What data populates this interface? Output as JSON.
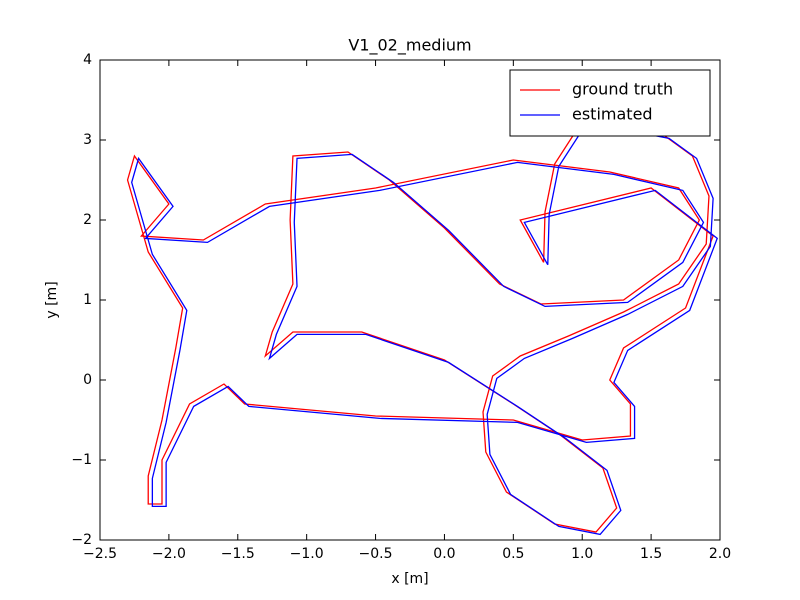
{
  "chart_data": {
    "type": "line",
    "title": "V1_02_medium",
    "xlabel": "x [m]",
    "ylabel": "y [m]",
    "xlim": [
      -2.5,
      2.0
    ],
    "ylim": [
      -2,
      4
    ],
    "xticks": [
      {
        "value": -2.5,
        "label": "−2.5"
      },
      {
        "value": -2.0,
        "label": "−2.0"
      },
      {
        "value": -1.5,
        "label": "−1.5"
      },
      {
        "value": -1.0,
        "label": "−1.0"
      },
      {
        "value": -0.5,
        "label": "−0.5"
      },
      {
        "value": 0.0,
        "label": "0.0"
      },
      0.5,
      {
        "value": 1.0,
        "label": "1.0"
      },
      1.5,
      {
        "value": 2.0,
        "label": "2.0"
      }
    ],
    "yticks": [
      {
        "value": -2,
        "label": "−2"
      },
      {
        "value": -1,
        "label": "−1"
      },
      0,
      1,
      2,
      3,
      4
    ],
    "legend": "upper right",
    "series": [
      {
        "name": "ground truth",
        "color": "#ff0000",
        "x": [
          0.72,
          0.73,
          0.8,
          0.95,
          1.3,
          1.6,
          1.8,
          1.92,
          1.9,
          1.7,
          1.3,
          0.9,
          0.55,
          0.35,
          0.28,
          0.3,
          0.45,
          0.8,
          1.1,
          1.25,
          1.15,
          0.85,
          0.5,
          0.0,
          -0.6,
          -1.1,
          -1.3,
          -1.25,
          -1.1,
          -1.12,
          -1.1,
          -0.7,
          -0.4,
          0.0,
          0.4,
          0.7,
          1.3,
          1.7,
          1.85,
          1.7,
          1.2,
          0.5,
          -0.5,
          -1.3,
          -1.75,
          -2.2,
          -2.0,
          -2.25,
          -2.3,
          -2.15,
          -1.9,
          -1.95,
          -2.05,
          -2.15,
          -2.15,
          -2.05,
          -2.05,
          -1.85,
          -1.6,
          -1.45,
          -0.5,
          0.5,
          1.0,
          1.35,
          1.35,
          1.2,
          1.3,
          1.75,
          1.95,
          1.5,
          0.55,
          0.72
        ],
        "values": [
          1.47,
          2.1,
          2.7,
          3.1,
          3.15,
          3.05,
          2.8,
          2.3,
          1.7,
          1.2,
          0.85,
          0.55,
          0.3,
          0.05,
          -0.4,
          -0.9,
          -1.4,
          -1.8,
          -1.9,
          -1.6,
          -1.1,
          -0.7,
          -0.3,
          0.25,
          0.6,
          0.6,
          0.3,
          0.6,
          1.2,
          2.0,
          2.8,
          2.85,
          2.5,
          1.9,
          1.2,
          0.95,
          1.0,
          1.5,
          2.0,
          2.4,
          2.6,
          2.75,
          2.4,
          2.2,
          1.75,
          1.8,
          2.2,
          2.8,
          2.5,
          1.6,
          0.9,
          0.4,
          -0.5,
          -1.2,
          -1.55,
          -1.55,
          -1.0,
          -0.3,
          -0.05,
          -0.3,
          -0.45,
          -0.5,
          -0.75,
          -0.7,
          -0.3,
          0.0,
          0.4,
          0.9,
          1.8,
          2.4,
          2.0,
          1.47
        ]
      },
      {
        "name": "estimated",
        "color": "#0000ff",
        "x": [
          0.75,
          0.76,
          0.83,
          0.98,
          1.33,
          1.63,
          1.83,
          1.95,
          1.93,
          1.73,
          1.33,
          0.93,
          0.58,
          0.38,
          0.31,
          0.33,
          0.48,
          0.83,
          1.13,
          1.28,
          1.18,
          0.88,
          0.53,
          0.03,
          -0.57,
          -1.07,
          -1.27,
          -1.22,
          -1.07,
          -1.09,
          -1.07,
          -0.67,
          -0.37,
          0.03,
          0.43,
          0.73,
          1.33,
          1.73,
          1.88,
          1.73,
          1.23,
          0.53,
          -0.47,
          -1.27,
          -1.72,
          -2.17,
          -1.97,
          -2.22,
          -2.27,
          -2.12,
          -1.87,
          -1.92,
          -2.02,
          -2.12,
          -2.12,
          -2.02,
          -2.02,
          -1.82,
          -1.57,
          -1.42,
          -0.47,
          0.53,
          1.03,
          1.38,
          1.38,
          1.23,
          1.33,
          1.78,
          1.98,
          1.53,
          0.58,
          0.75
        ],
        "values": [
          1.44,
          2.07,
          2.67,
          3.07,
          3.12,
          3.02,
          2.77,
          2.27,
          1.67,
          1.17,
          0.82,
          0.52,
          0.27,
          0.02,
          -0.43,
          -0.93,
          -1.43,
          -1.83,
          -1.93,
          -1.63,
          -1.13,
          -0.73,
          -0.33,
          0.22,
          0.57,
          0.57,
          0.27,
          0.57,
          1.17,
          1.97,
          2.77,
          2.82,
          2.47,
          1.87,
          1.17,
          0.92,
          0.97,
          1.47,
          1.97,
          2.37,
          2.57,
          2.72,
          2.37,
          2.17,
          1.72,
          1.77,
          2.17,
          2.77,
          2.47,
          1.57,
          0.87,
          0.37,
          -0.53,
          -1.23,
          -1.58,
          -1.58,
          -1.03,
          -0.33,
          -0.08,
          -0.33,
          -0.48,
          -0.53,
          -0.78,
          -0.73,
          -0.33,
          -0.03,
          0.37,
          0.87,
          1.77,
          2.37,
          1.97,
          1.44
        ]
      }
    ]
  }
}
